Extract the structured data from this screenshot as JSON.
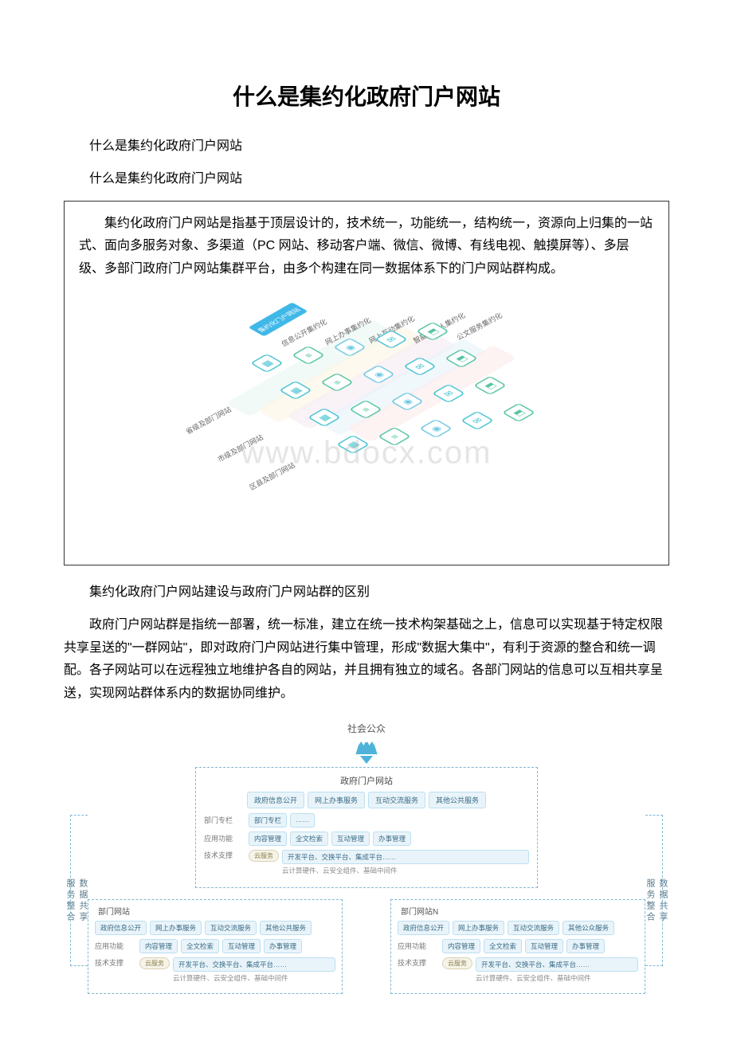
{
  "title": "什么是集约化政府门户网站",
  "para1": "什么是集约化政府门户网站",
  "para2": "什么是集约化政府门户网站",
  "box_text": "集约化政府门户网站是指基于顶层设计的，技术统一，功能统一，结构统一，资源向上归集的一站式、面向多服务对象、多渠道（PC 网站、移动客户端、微信、微博、有线电视、触摸屏等）、多层级、多部门政府门户网站集群平台，由多个构建在同一数据体系下的门户网站群构成。",
  "watermark": "www.bdocx.com",
  "figure1": {
    "header": "集约化门户网站",
    "row_labels": [
      "信息公开集约化",
      "网上办事集约化",
      "网上互动集约化",
      "智能提醒人集约化",
      "公文服务集约化"
    ],
    "col_labels": [
      "省级及部门网站",
      "市级及部门网站",
      "区县及部门网站"
    ],
    "strip_colors": [
      "#e8f6f2",
      "#fdf5e1",
      "#f4e9f2",
      "#e6f3f9",
      "#fdeaea"
    ],
    "tile_border_colors": [
      "#46c3d2",
      "#55c4a2",
      "#6fc8e3",
      "#46c3d2",
      "#55c4a2"
    ],
    "tile_glyphs": [
      "▦",
      "≡",
      "◉",
      "✉",
      "⬒"
    ]
  },
  "para3": "集约化政府门户网站建设与政府门户网站群的区别",
  "para4": "政府门户网站群是指统一部署，统一标准，建立在统一技术构架基础之上，信息可以实现基于特定权限共享呈送的\"一群网站\"，即对政府门户网站进行集中管理，形成\"数据大集中\"，有利于资源的整合和统一调配。各子网站可以在远程独立地维护各自的网站，并且拥有独立的域名。各部门网站的信息可以互相共享呈送，实现网站群体系内的数据协同维护。",
  "figure2": {
    "top": "社会公众",
    "portal_title": "政府门户网站",
    "services": [
      "政府信息公开",
      "网上办事服务",
      "互动交流服务",
      "其他公共服务"
    ],
    "columns_label": "部门专栏",
    "columns": [
      "部门专栏",
      "……"
    ],
    "app_label": "应用功能",
    "app_chips": [
      "内容管理",
      "全文检索",
      "互动管理",
      "办事管理"
    ],
    "tech_label": "技术支撑",
    "cloud": "云服务",
    "tech_line1": "开发平台、交换平台、集成平台……",
    "tech_line2": "云计算硬件、云安全组件、基础中间件",
    "side_left1": "服务整合",
    "side_left2": "数据共享",
    "side_right1": "服务整合",
    "side_right2": "数据共享",
    "dept1": {
      "title": "部门网站",
      "services": [
        "政府信息公开",
        "网上办事服务",
        "互动交流服务",
        "其他公共服务"
      ],
      "app_label": "应用功能",
      "app_chips": [
        "内容管理",
        "全文检索",
        "互动管理",
        "办事管理"
      ],
      "tech_label": "技术支撑",
      "tech_line1": "开发平台、交换平台、集成平台……",
      "tech_line2": "云计算硬件、云安全组件、基础中间件"
    },
    "dept2": {
      "title": "部门网站N",
      "services": [
        "政府信息公开",
        "网上办事服务",
        "互动交流服务",
        "其他公众服务"
      ],
      "app_label": "应用功能",
      "app_chips": [
        "内容管理",
        "全文检索",
        "互动管理",
        "办事管理"
      ],
      "tech_label": "技术支撑",
      "tech_line1": "开发平台、交换平台、集成平台……",
      "tech_line2": "云计算硬件、云安全组件、基础中间件"
    }
  },
  "colors": {
    "chip_bg": "#e9f4fa",
    "chip_border": "#bcdff0",
    "dash_border": "#7fb8d4",
    "accent": "#4fb3d9"
  }
}
